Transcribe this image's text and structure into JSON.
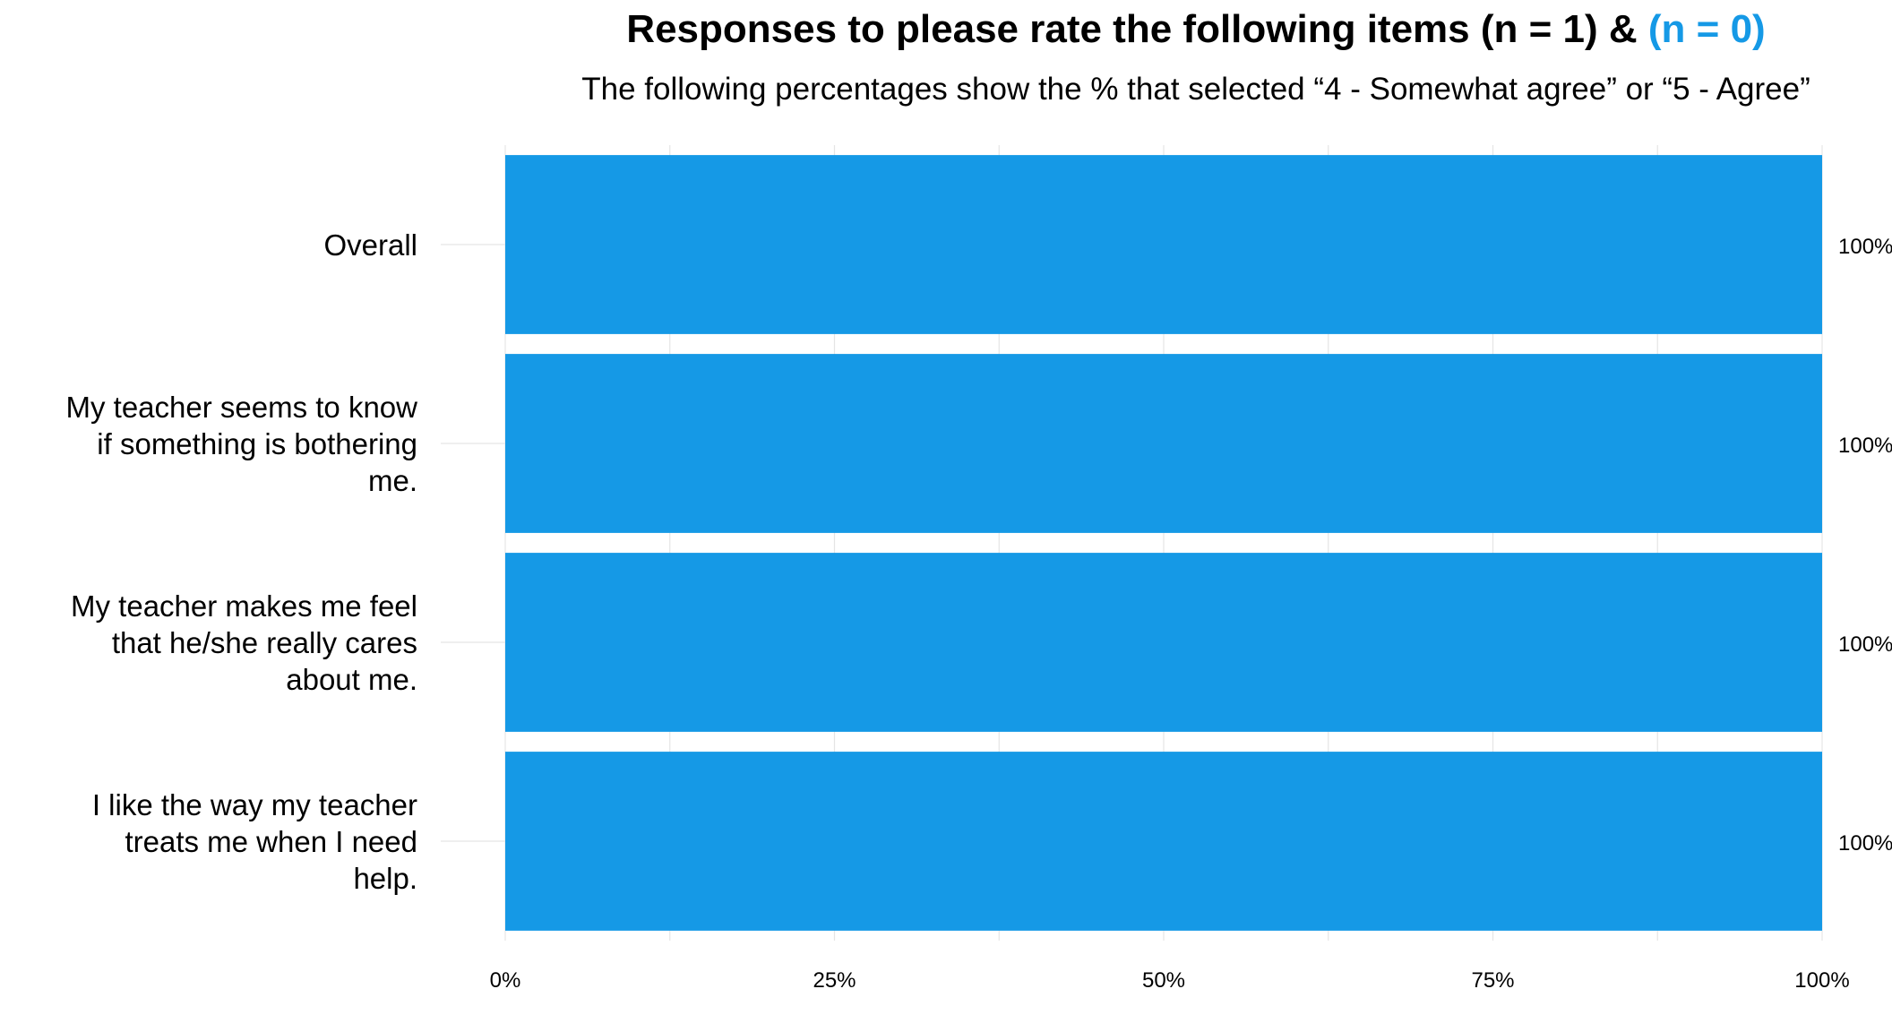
{
  "chart_data": {
    "type": "bar",
    "orientation": "horizontal",
    "title": {
      "part1": "Responses to please rate the following items (n = 1) & ",
      "part2": "(n = 0)"
    },
    "subtitle": "The following percentages show the % that selected “4 - Somewhat agree” or “5 - Agree”",
    "categories": [
      [
        "Overall"
      ],
      [
        "My teacher seems to know",
        "if something is bothering",
        "me."
      ],
      [
        "My teacher makes me feel",
        "that he/she really cares",
        "about me."
      ],
      [
        "I like the way my teacher",
        "treats me when I need",
        "help."
      ]
    ],
    "values": [
      100,
      100,
      100,
      100
    ],
    "value_labels": [
      "100%",
      "100%",
      "100%",
      "100%"
    ],
    "xlim": [
      0,
      100
    ],
    "xticks": [
      0,
      25,
      50,
      75,
      100
    ],
    "xtick_labels": [
      "0%",
      "25%",
      "50%",
      "75%",
      "100%"
    ],
    "grid": true,
    "colors": {
      "bar": "#1599E6",
      "highlight_text": "#1599E6",
      "grid": "#E5E5E5"
    }
  }
}
